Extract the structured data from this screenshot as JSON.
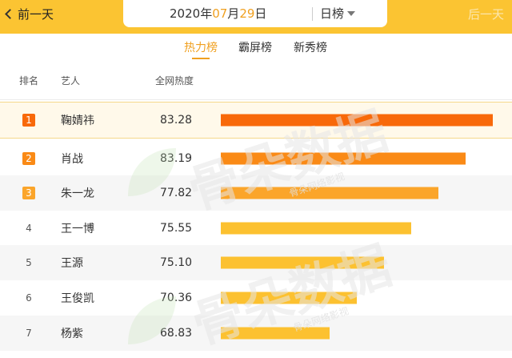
{
  "topbar": {
    "prev_label": "前一天",
    "next_label": "后一天",
    "date": {
      "year": "2020",
      "y_suffix": "年",
      "month": "07",
      "m_suffix": "月",
      "day": "29",
      "d_suffix": "日"
    },
    "period_label": "日榜"
  },
  "tabs": [
    {
      "label": "热力榜",
      "active": true
    },
    {
      "label": "霸屏榜",
      "active": false
    },
    {
      "label": "新秀榜",
      "active": false
    }
  ],
  "headers": {
    "rank": "排名",
    "artist": "艺人",
    "heat": "全网热度"
  },
  "chart_data": {
    "type": "bar",
    "categories": [
      "鞠婧祎",
      "肖战",
      "朱一龙",
      "王一博",
      "王源",
      "王俊凯",
      "杨紫"
    ],
    "values": [
      83.28,
      83.19,
      77.82,
      75.55,
      75.1,
      70.36,
      68.83
    ],
    "ranks": [
      "1",
      "2",
      "3",
      "4",
      "5",
      "6",
      "7"
    ],
    "value_labels": [
      "83.28",
      "83.19",
      "77.82",
      "75.55",
      "75.10",
      "70.36",
      "68.83"
    ],
    "bar_lengths": [
      1.0,
      0.9,
      0.8,
      0.7,
      0.6,
      0.5,
      0.4
    ],
    "bar_colors": [
      "#f8690a",
      "#fa8a16",
      "#fba52a",
      "#fcc130",
      "#fcc130",
      "#fcc130",
      "#fcc130"
    ],
    "rank_badge_colors": [
      "#f8690a",
      "#fa8a16",
      "#fba52a",
      "",
      "",
      "",
      ""
    ],
    "grid": false,
    "title": "",
    "xlabel": "",
    "ylabel": ""
  },
  "watermark": {
    "main": "骨朵数据",
    "sub": "骨朵网络影视"
  },
  "colors": {
    "accent": "#fbc432",
    "active_tab": "#f0a020"
  }
}
